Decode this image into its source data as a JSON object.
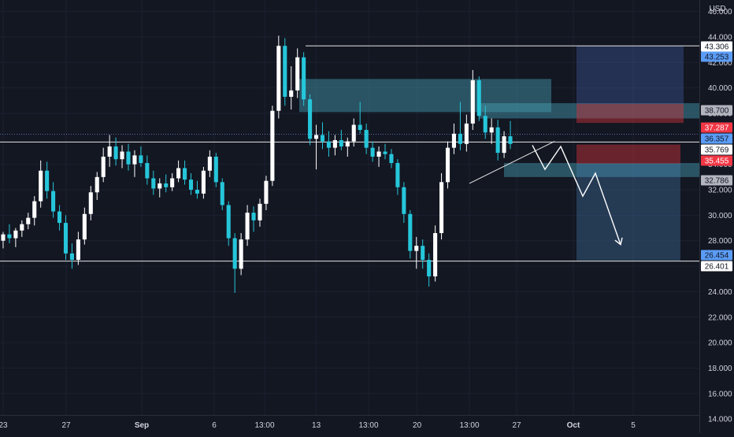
{
  "chart_data": {
    "type": "candlestick",
    "currency_label": "USD",
    "x_tick_labels": [
      "23",
      "27",
      "Sep",
      "6",
      "13:00",
      "13",
      "13:00",
      "20",
      "13:00",
      "27",
      "Oct",
      "5"
    ],
    "x_tick_positions": [
      0.5,
      10.5,
      22.5,
      34,
      42,
      50.2,
      58.5,
      66.2,
      74.5,
      82,
      91,
      100.5
    ],
    "y_tick_labels": [
      "46.000",
      "44.000",
      "42.000",
      "40.000",
      "38.000",
      "34.000",
      "32.000",
      "30.000",
      "28.000",
      "26.000",
      "24.000",
      "22.000",
      "20.000",
      "18.000",
      "16.000",
      "14.000"
    ],
    "y_tick_values": [
      46,
      44,
      42,
      40,
      38,
      34,
      32,
      30,
      28,
      26,
      24,
      22,
      20,
      18,
      16,
      14
    ],
    "ylim": [
      12.9,
      46.9
    ],
    "xlim": [
      0,
      111
    ],
    "price_tags": [
      {
        "label": "43.306",
        "value": 43.306,
        "style": "white"
      },
      {
        "label": "43.253",
        "value": 43.253,
        "style": "blue"
      },
      {
        "label": "38.700",
        "value": 38.7,
        "style": "gray"
      },
      {
        "label": "37.287",
        "value": 37.287,
        "style": "red"
      },
      {
        "label": "36.357",
        "value": 36.357,
        "style": "blue"
      },
      {
        "label": "35.769",
        "value": 35.769,
        "style": "white"
      },
      {
        "label": "35.455",
        "value": 35.455,
        "style": "red"
      },
      {
        "label": "32.786",
        "value": 32.786,
        "style": "gray"
      },
      {
        "label": "26.454",
        "value": 26.454,
        "style": "blue"
      },
      {
        "label": "26.401",
        "value": 26.401,
        "style": "white"
      }
    ],
    "horizontal_lines": [
      {
        "value": 43.3,
        "x_from": 48.5,
        "x_to": 111,
        "style": "solid"
      },
      {
        "value": 35.75,
        "x_from": 0,
        "x_to": 111,
        "style": "solid"
      },
      {
        "value": 26.4,
        "x_from": 0,
        "x_to": 111,
        "style": "solid"
      },
      {
        "value": 36.36,
        "x_from": 0,
        "x_to": 111,
        "style": "dotted"
      }
    ],
    "zones": [
      {
        "x0": 47.5,
        "x1": 87.5,
        "y_low": 38.1,
        "y_high": 40.7,
        "kind": "supply"
      },
      {
        "x0": 76,
        "x1": 111,
        "y_low": 37.6,
        "y_high": 38.8,
        "kind": "supply"
      },
      {
        "x0": 80,
        "x1": 111,
        "y_low": 33.0,
        "y_high": 34.1,
        "kind": "demand"
      }
    ],
    "positions": [
      {
        "x0": 91.5,
        "x1": 108.5,
        "entry": 38.75,
        "stop": 37.25,
        "target": 43.3,
        "kind": "long"
      },
      {
        "x0": 91.5,
        "x1": 108,
        "entry": 34.05,
        "stop": 35.55,
        "target": 26.45,
        "kind": "short"
      }
    ],
    "trendline": {
      "x0": 74.5,
      "y0": 32.5,
      "x1": 88,
      "y1": 35.8
    },
    "projection_path": [
      [
        84.5,
        35.5
      ],
      [
        86.5,
        33.6
      ],
      [
        89,
        35.4
      ],
      [
        92.5,
        31.5
      ],
      [
        94.5,
        33.3
      ],
      [
        98.5,
        27.7
      ]
    ],
    "candles": [
      [
        28.0,
        28.7,
        27.4,
        28.5
      ],
      [
        28.5,
        29.3,
        27.8,
        28.2
      ],
      [
        28.2,
        29.0,
        27.5,
        28.8
      ],
      [
        28.8,
        29.6,
        28.3,
        29.3
      ],
      [
        29.3,
        30.2,
        28.9,
        29.8
      ],
      [
        29.8,
        31.5,
        29.2,
        31.1
      ],
      [
        31.1,
        34.3,
        30.6,
        33.5
      ],
      [
        33.5,
        34.2,
        31.3,
        31.9
      ],
      [
        31.9,
        32.6,
        29.8,
        30.3
      ],
      [
        30.3,
        30.8,
        28.8,
        29.4
      ],
      [
        29.4,
        30.0,
        26.5,
        27.0
      ],
      [
        27.0,
        27.8,
        25.8,
        26.5
      ],
      [
        26.5,
        28.7,
        26.1,
        28.1
      ],
      [
        28.1,
        30.6,
        27.7,
        30.1
      ],
      [
        30.1,
        32.3,
        29.6,
        31.8
      ],
      [
        31.8,
        33.4,
        31.2,
        33.0
      ],
      [
        33.0,
        35.3,
        32.6,
        34.6
      ],
      [
        34.6,
        36.3,
        33.8,
        35.4
      ],
      [
        35.4,
        36.1,
        33.9,
        34.4
      ],
      [
        34.4,
        35.5,
        33.7,
        35.0
      ],
      [
        35.0,
        35.6,
        33.5,
        34.0
      ],
      [
        34.0,
        35.1,
        33.0,
        34.7
      ],
      [
        34.7,
        35.4,
        33.8,
        34.1
      ],
      [
        34.1,
        34.7,
        32.4,
        32.9
      ],
      [
        32.9,
        33.5,
        31.6,
        32.1
      ],
      [
        32.1,
        32.9,
        31.4,
        32.5
      ],
      [
        32.5,
        33.2,
        31.8,
        32.2
      ],
      [
        32.2,
        33.3,
        31.9,
        32.9
      ],
      [
        32.9,
        34.3,
        32.6,
        33.7
      ],
      [
        33.7,
        34.3,
        32.4,
        32.8
      ],
      [
        32.8,
        33.3,
        31.6,
        32.0
      ],
      [
        32.0,
        32.7,
        31.3,
        31.7
      ],
      [
        31.7,
        33.8,
        31.3,
        33.5
      ],
      [
        33.5,
        35.1,
        33.0,
        34.6
      ],
      [
        34.6,
        34.9,
        32.2,
        32.6
      ],
      [
        32.6,
        32.9,
        30.4,
        30.8
      ],
      [
        30.8,
        31.1,
        27.6,
        28.2
      ],
      [
        28.2,
        28.6,
        23.9,
        25.8
      ],
      [
        25.8,
        28.6,
        25.3,
        28.1
      ],
      [
        28.1,
        30.8,
        27.6,
        30.2
      ],
      [
        30.2,
        30.7,
        28.7,
        29.6
      ],
      [
        29.6,
        31.3,
        29.1,
        30.9
      ],
      [
        30.9,
        33.1,
        30.4,
        32.7
      ],
      [
        32.7,
        38.6,
        32.3,
        38.2
      ],
      [
        38.2,
        44.1,
        37.6,
        43.3
      ],
      [
        43.3,
        43.9,
        38.6,
        39.3
      ],
      [
        39.3,
        41.7,
        38.3,
        39.8
      ],
      [
        39.8,
        43.1,
        39.2,
        42.4
      ],
      [
        42.4,
        42.8,
        38.6,
        39.1
      ],
      [
        39.1,
        39.5,
        35.5,
        36.0
      ],
      [
        36.0,
        37.1,
        33.6,
        36.3
      ],
      [
        36.3,
        37.3,
        35.2,
        35.8
      ],
      [
        35.8,
        36.6,
        34.6,
        35.3
      ],
      [
        35.3,
        36.3,
        34.7,
        35.9
      ],
      [
        35.9,
        36.7,
        35.1,
        35.4
      ],
      [
        35.4,
        36.1,
        34.6,
        35.8
      ],
      [
        35.8,
        37.6,
        35.4,
        37.1
      ],
      [
        37.1,
        38.9,
        36.4,
        36.7
      ],
      [
        36.7,
        37.2,
        34.8,
        35.3
      ],
      [
        35.3,
        35.8,
        34.2,
        34.6
      ],
      [
        34.6,
        35.4,
        33.8,
        35.0
      ],
      [
        35.0,
        35.6,
        34.4,
        34.8
      ],
      [
        34.8,
        35.2,
        33.7,
        34.1
      ],
      [
        34.1,
        34.4,
        31.6,
        32.2
      ],
      [
        32.2,
        32.6,
        29.4,
        30.1
      ],
      [
        30.1,
        30.4,
        26.6,
        27.2
      ],
      [
        27.2,
        28.3,
        25.8,
        27.6
      ],
      [
        27.6,
        28.1,
        25.8,
        26.5
      ],
      [
        26.5,
        27.0,
        24.4,
        25.2
      ],
      [
        25.2,
        29.2,
        24.8,
        28.6
      ],
      [
        28.6,
        33.3,
        28.1,
        32.6
      ],
      [
        32.6,
        35.8,
        32.1,
        35.3
      ],
      [
        35.3,
        37.2,
        34.8,
        36.4
      ],
      [
        36.4,
        38.9,
        35.1,
        35.6
      ],
      [
        35.6,
        37.9,
        35.0,
        37.2
      ],
      [
        37.2,
        41.4,
        36.7,
        40.6
      ],
      [
        40.6,
        40.9,
        37.4,
        37.8
      ],
      [
        37.8,
        38.6,
        36.0,
        36.5
      ],
      [
        36.5,
        37.6,
        35.6,
        36.9
      ],
      [
        36.9,
        37.5,
        34.3,
        34.9
      ],
      [
        34.9,
        36.6,
        34.5,
        36.2
      ],
      [
        36.2,
        37.4,
        35.2,
        35.6
      ]
    ]
  }
}
